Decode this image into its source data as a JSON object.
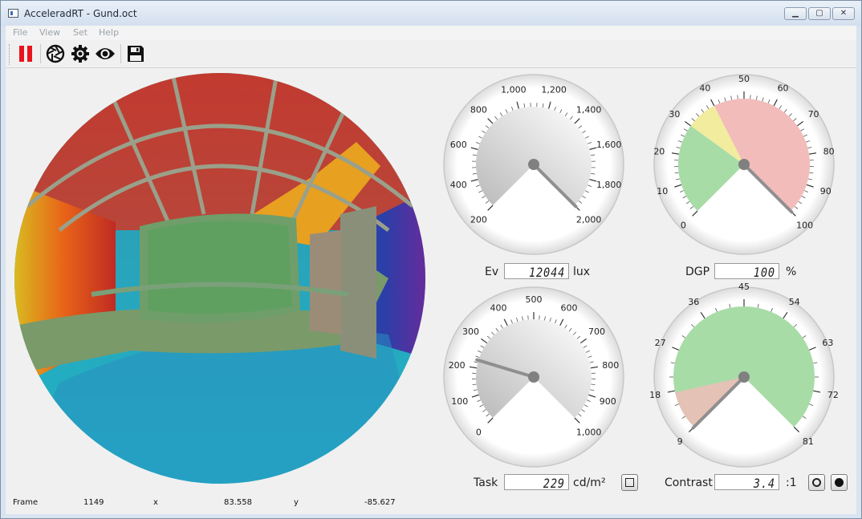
{
  "window": {
    "title": "AcceleradRT - Gund.oct"
  },
  "menu": [
    "File",
    "View",
    "Set",
    "Help"
  ],
  "toolbar": {
    "icons": [
      "pause-icon",
      "aperture-icon",
      "gear-icon",
      "eye-icon",
      "save-icon"
    ],
    "colors": {
      "pause": "#e8141b"
    }
  },
  "gauges": {
    "ev": {
      "ticks": [
        "200",
        "400",
        "600",
        "800",
        "1,000",
        "1,200",
        "1,400",
        "1,600",
        "1,800",
        "2,000"
      ],
      "label": "Ev",
      "value_text": "12044",
      "unit": "lux",
      "needle_fraction": 1.0
    },
    "dgp": {
      "ticks": [
        "0",
        "10",
        "20",
        "30",
        "40",
        "50",
        "60",
        "70",
        "80",
        "90",
        "100"
      ],
      "label": "DGP",
      "value_text": "100",
      "unit": "%",
      "needle_fraction": 1.0,
      "zones": [
        {
          "from": 0,
          "to": 30,
          "color": "#a8dca7"
        },
        {
          "from": 30,
          "to": 40,
          "color": "#f2ec9e"
        },
        {
          "from": 40,
          "to": 100,
          "color": "#f2bcba"
        }
      ]
    },
    "task": {
      "ticks": [
        "0",
        "100",
        "200",
        "300",
        "400",
        "500",
        "600",
        "700",
        "800",
        "900",
        "1,000"
      ],
      "label": "Task",
      "value_text": "229",
      "unit": "cd/m²",
      "needle_fraction": 0.229
    },
    "contrast": {
      "ticks": [
        "9",
        "18",
        "27",
        "36",
        "45",
        "54",
        "63",
        "72",
        "81"
      ],
      "label": "Contrast",
      "value_text": "3.4",
      "unit": ":1",
      "needle_fraction": 0.0
    }
  },
  "status": {
    "frame_label": "Frame",
    "frame_value": "1149",
    "x_label": "x",
    "x_value": "83.558",
    "y_label": "y",
    "y_value": "-85.627"
  }
}
